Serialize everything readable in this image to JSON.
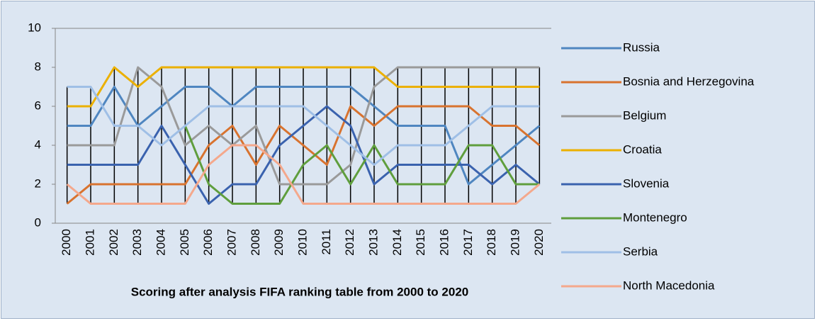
{
  "chart_data": {
    "type": "line",
    "x_label": "Scoring after analysis FIFA ranking table from 2000 to 2020",
    "categories": [
      "2000",
      "2001",
      "2002",
      "2003",
      "2004",
      "2005",
      "2006",
      "2007",
      "2008",
      "2009",
      "2010",
      "2011",
      "2012",
      "2013",
      "2014",
      "2015",
      "2016",
      "2017",
      "2018",
      "2019",
      "2020"
    ],
    "ylim": [
      0,
      10
    ],
    "yticks": [
      0,
      2,
      4,
      6,
      8,
      10
    ],
    "grid": false,
    "legend": "right",
    "series": [
      {
        "name": "Russia",
        "color": "#4f86c0",
        "values": [
          5,
          5,
          7,
          5,
          6,
          7,
          7,
          6,
          7,
          7,
          7,
          7,
          7,
          6,
          5,
          5,
          5,
          2,
          3,
          4,
          5
        ]
      },
      {
        "name": "Bosnia and Herzegovina",
        "color": "#d8732f",
        "values": [
          1,
          2,
          2,
          2,
          2,
          2,
          4,
          5,
          3,
          5,
          4,
          3,
          6,
          5,
          6,
          6,
          6,
          6,
          5,
          5,
          4
        ]
      },
      {
        "name": "Belgium",
        "color": "#9a9a9a",
        "values": [
          4,
          4,
          4,
          8,
          7,
          4,
          5,
          4,
          5,
          2,
          2,
          2,
          3,
          7,
          8,
          8,
          8,
          8,
          8,
          8,
          8
        ]
      },
      {
        "name": "Croatia",
        "color": "#ebb000",
        "values": [
          6,
          6,
          8,
          7,
          8,
          8,
          8,
          8,
          8,
          8,
          8,
          8,
          8,
          8,
          7,
          7,
          7,
          7,
          7,
          7,
          7
        ]
      },
      {
        "name": "Slovenia",
        "color": "#3a62ae",
        "values": [
          3,
          3,
          3,
          3,
          5,
          3,
          1,
          2,
          2,
          4,
          5,
          6,
          5,
          2,
          3,
          3,
          3,
          3,
          2,
          3,
          2
        ]
      },
      {
        "name": "Montenegro",
        "color": "#5f9e3d",
        "values": [
          null,
          null,
          null,
          null,
          null,
          5,
          2,
          1,
          1,
          1,
          3,
          4,
          2,
          4,
          2,
          2,
          2,
          4,
          4,
          2,
          2
        ]
      },
      {
        "name": "Serbia",
        "color": "#9fbfe6",
        "values": [
          7,
          7,
          5,
          5,
          4,
          5,
          6,
          6,
          6,
          6,
          6,
          5,
          4,
          3,
          4,
          4,
          4,
          5,
          6,
          6,
          6
        ]
      },
      {
        "name": "North Macedonia",
        "color": "#f4a88c",
        "values": [
          2,
          1,
          1,
          1,
          1,
          1,
          3,
          4,
          4,
          3,
          1,
          1,
          1,
          1,
          1,
          1,
          1,
          1,
          1,
          1,
          2
        ]
      }
    ]
  }
}
